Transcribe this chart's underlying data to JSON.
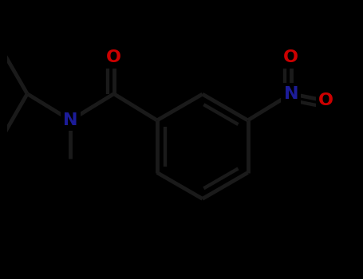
{
  "background_color": "#000000",
  "bond_color": "#1a1a1a",
  "O_color": "#cc0000",
  "N_color": "#1c1c99",
  "lw": 3.5,
  "dbo": 0.06,
  "figsize": [
    4.55,
    3.5
  ],
  "dpi": 100,
  "xlim": [
    -2.2,
    2.8
  ],
  "ylim": [
    -2.0,
    2.0
  ],
  "font_size": 16,
  "font_weight": "bold"
}
